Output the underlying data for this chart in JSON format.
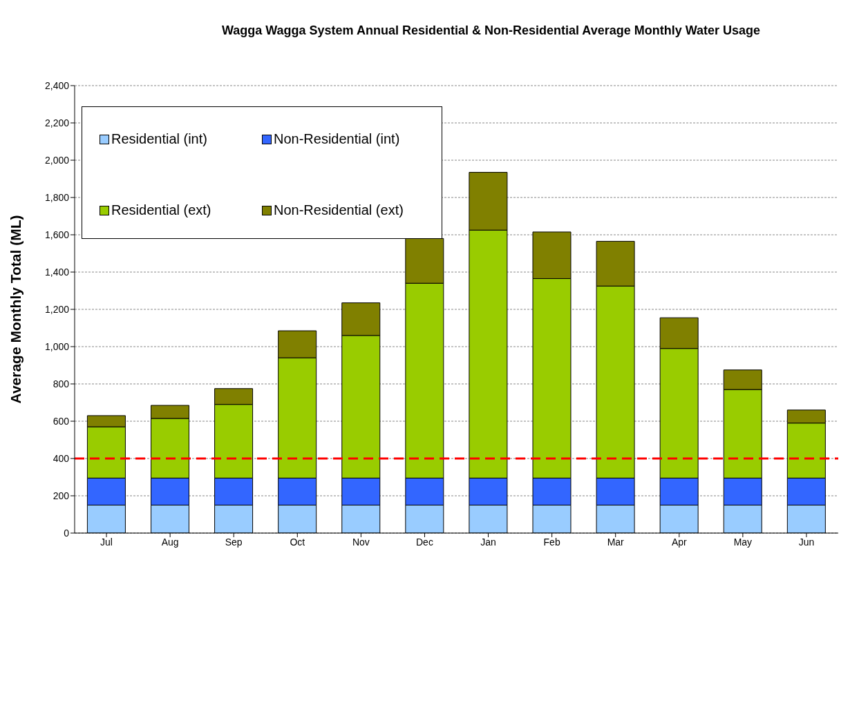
{
  "chart_data": {
    "type": "bar",
    "title": "Wagga Wagga System Annual Residential & Non-Residential Average Monthly Water Usage",
    "ylabel": "Average  Monthly Total (ML)",
    "categories": [
      "Jul",
      "Aug",
      "Sep",
      "Oct",
      "Nov",
      "Dec",
      "Jan",
      "Feb",
      "Mar",
      "Apr",
      "May",
      "Jun"
    ],
    "stacked": true,
    "series": [
      {
        "name": "Residential (int)",
        "color": "#99ccff",
        "values": [
          150,
          150,
          150,
          150,
          150,
          150,
          150,
          150,
          150,
          150,
          150,
          150
        ]
      },
      {
        "name": "Non-Residential (int)",
        "color": "#3366ff",
        "values": [
          145,
          145,
          145,
          145,
          145,
          145,
          145,
          145,
          145,
          145,
          145,
          145
        ]
      },
      {
        "name": "Residential (ext)",
        "color": "#99cc00",
        "values": [
          275,
          320,
          395,
          645,
          765,
          1045,
          1330,
          1070,
          1030,
          695,
          475,
          295
        ]
      },
      {
        "name": "Non-Residential (ext)",
        "color": "#808000",
        "values": [
          60,
          70,
          85,
          145,
          175,
          240,
          310,
          250,
          240,
          165,
          105,
          70
        ]
      }
    ],
    "ylim": [
      0,
      2400
    ],
    "yticks": [
      0,
      200,
      400,
      600,
      800,
      {
        "value": 1000,
        "label": "1,000"
      },
      {
        "value": 1200,
        "label": "1,200"
      },
      {
        "value": 1400,
        "label": "1,400"
      },
      {
        "value": 1600,
        "label": "1,600"
      },
      {
        "value": 1800,
        "label": "1,800"
      },
      {
        "value": 2000,
        "label": "2,000"
      },
      {
        "value": 2200,
        "label": "2,200"
      },
      {
        "value": 2400,
        "label": "2,400"
      }
    ],
    "ref_lines": [
      {
        "axis": "y",
        "value": 400,
        "color": "#ff0000",
        "line_style": "dashed"
      }
    ],
    "grid": "y",
    "legend": "top left"
  }
}
